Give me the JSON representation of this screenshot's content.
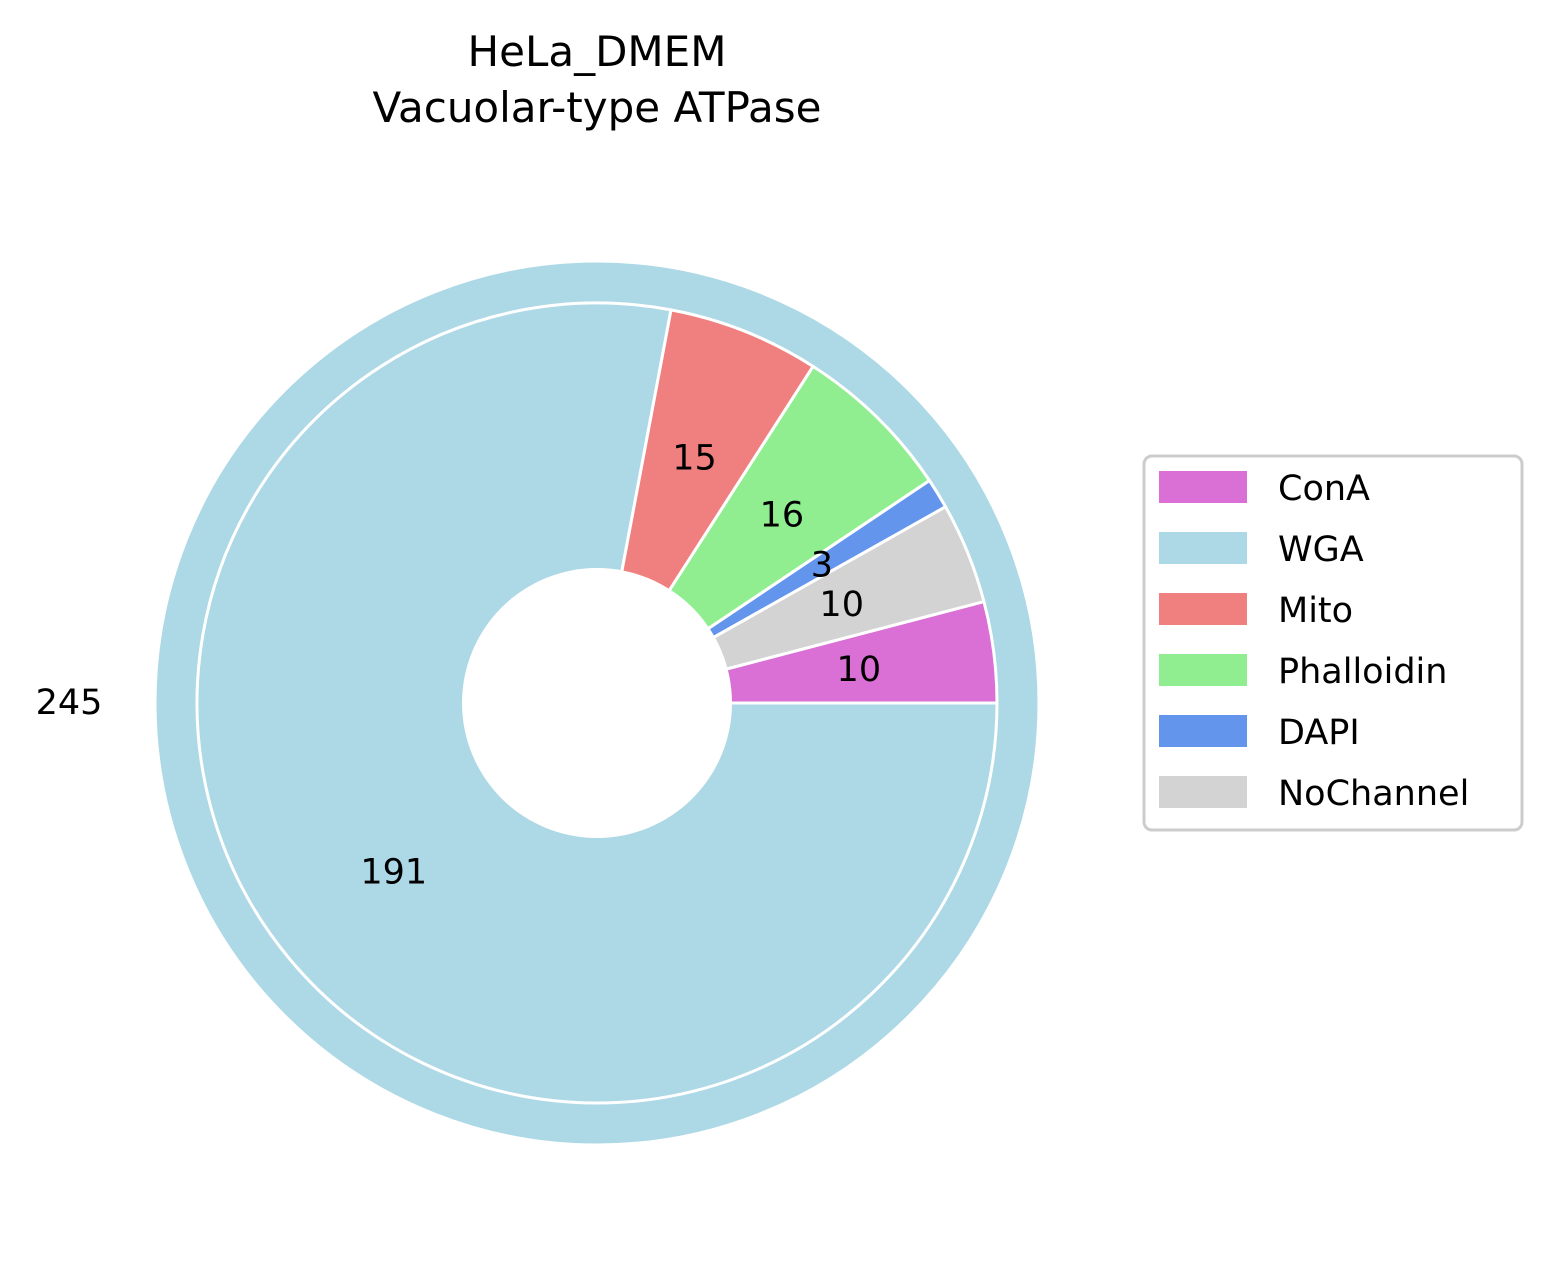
{
  "chart_data": {
    "type": "pie",
    "title": [
      "HeLa_DMEM",
      "Vacuolar-type ATPase"
    ],
    "outer_ring": {
      "label": "245",
      "value": 245,
      "color": "#add8e6"
    },
    "inner_ring": {
      "categories": [
        "ConA",
        "NoChannel",
        "DAPI",
        "Phalloidin",
        "Mito",
        "WGA"
      ],
      "values": [
        10,
        10,
        3,
        16,
        15,
        191
      ],
      "labels": [
        "10",
        "10",
        "3",
        "16",
        "15",
        "191"
      ],
      "colors": [
        "#da70d6",
        "#d3d3d3",
        "#6495ed",
        "#90ee90",
        "#f08080",
        "#add8e6"
      ]
    },
    "legend": {
      "placement": "right",
      "entries": [
        {
          "label": "ConA",
          "color": "#da70d6"
        },
        {
          "label": "WGA",
          "color": "#add8e6"
        },
        {
          "label": "Mito",
          "color": "#f08080"
        },
        {
          "label": "Phalloidin",
          "color": "#90ee90"
        },
        {
          "label": "DAPI",
          "color": "#6495ed"
        },
        {
          "label": "NoChannel",
          "color": "#d3d3d3"
        }
      ]
    }
  }
}
